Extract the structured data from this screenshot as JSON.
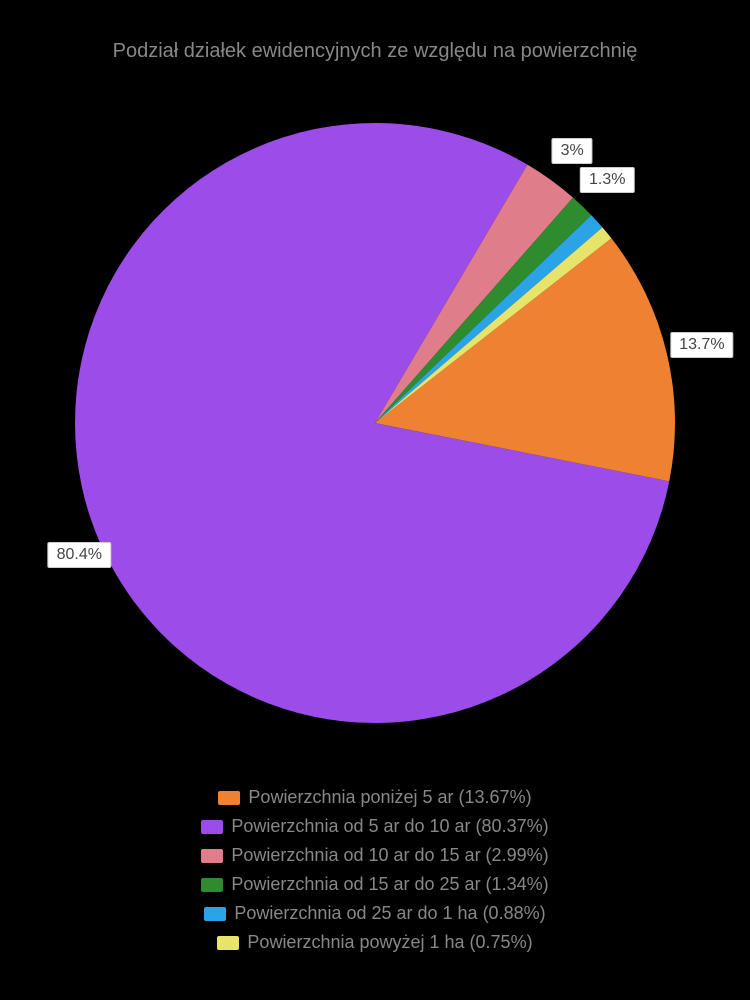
{
  "chart": {
    "type": "pie",
    "title": "Podział działek ewidencyjnych ze względu na powierzchnię",
    "title_fontsize": 20,
    "title_color": "#888888",
    "background_color": "#000000",
    "label_bg": "#ffffff",
    "label_color": "#444444",
    "label_fontsize": 16,
    "legend_color": "#888888",
    "legend_fontsize": 18,
    "radius": 300,
    "start_angle_deg": 52,
    "slices": [
      {
        "name": "Powierzchnia poniżej 5 ar",
        "value": 13.67,
        "color": "#ef8232",
        "label": "13.7%",
        "show_label": true,
        "label_r_factor": 1.12
      },
      {
        "name": "Powierzchnia od 5 ar do 10 ar",
        "value": 80.37,
        "color": "#9c4ce8",
        "label": "80.4%",
        "show_label": true,
        "label_r_factor": 1.08
      },
      {
        "name": "Powierzchnia od 10 ar do 15 ar",
        "value": 2.99,
        "color": "#e07d8a",
        "label": "3%",
        "show_label": true,
        "label_r_factor": 1.12
      },
      {
        "name": "Powierzchnia od 15 ar do 25 ar",
        "value": 1.34,
        "color": "#2e8b2e",
        "label": "1.3%",
        "show_label": true,
        "label_r_factor": 1.12
      },
      {
        "name": "Powierzchnia od 25 ar do 1 ha",
        "value": 0.88,
        "color": "#2aa4e6",
        "label": "0.9%",
        "show_label": false,
        "label_r_factor": 1.12
      },
      {
        "name": "Powierzchnia powyżej 1 ha",
        "value": 0.75,
        "color": "#e8e36a",
        "label": "0.8%",
        "show_label": false,
        "label_r_factor": 1.12
      }
    ],
    "legend": [
      "Powierzchnia poniżej 5 ar (13.67%)",
      "Powierzchnia od 5 ar do 10 ar (80.37%)",
      "Powierzchnia od 10 ar do 15 ar (2.99%)",
      "Powierzchnia od 15 ar do 25 ar (1.34%)",
      "Powierzchnia od 25 ar do 1 ha (0.88%)",
      "Powierzchnia powyżej 1 ha (0.75%)"
    ]
  }
}
